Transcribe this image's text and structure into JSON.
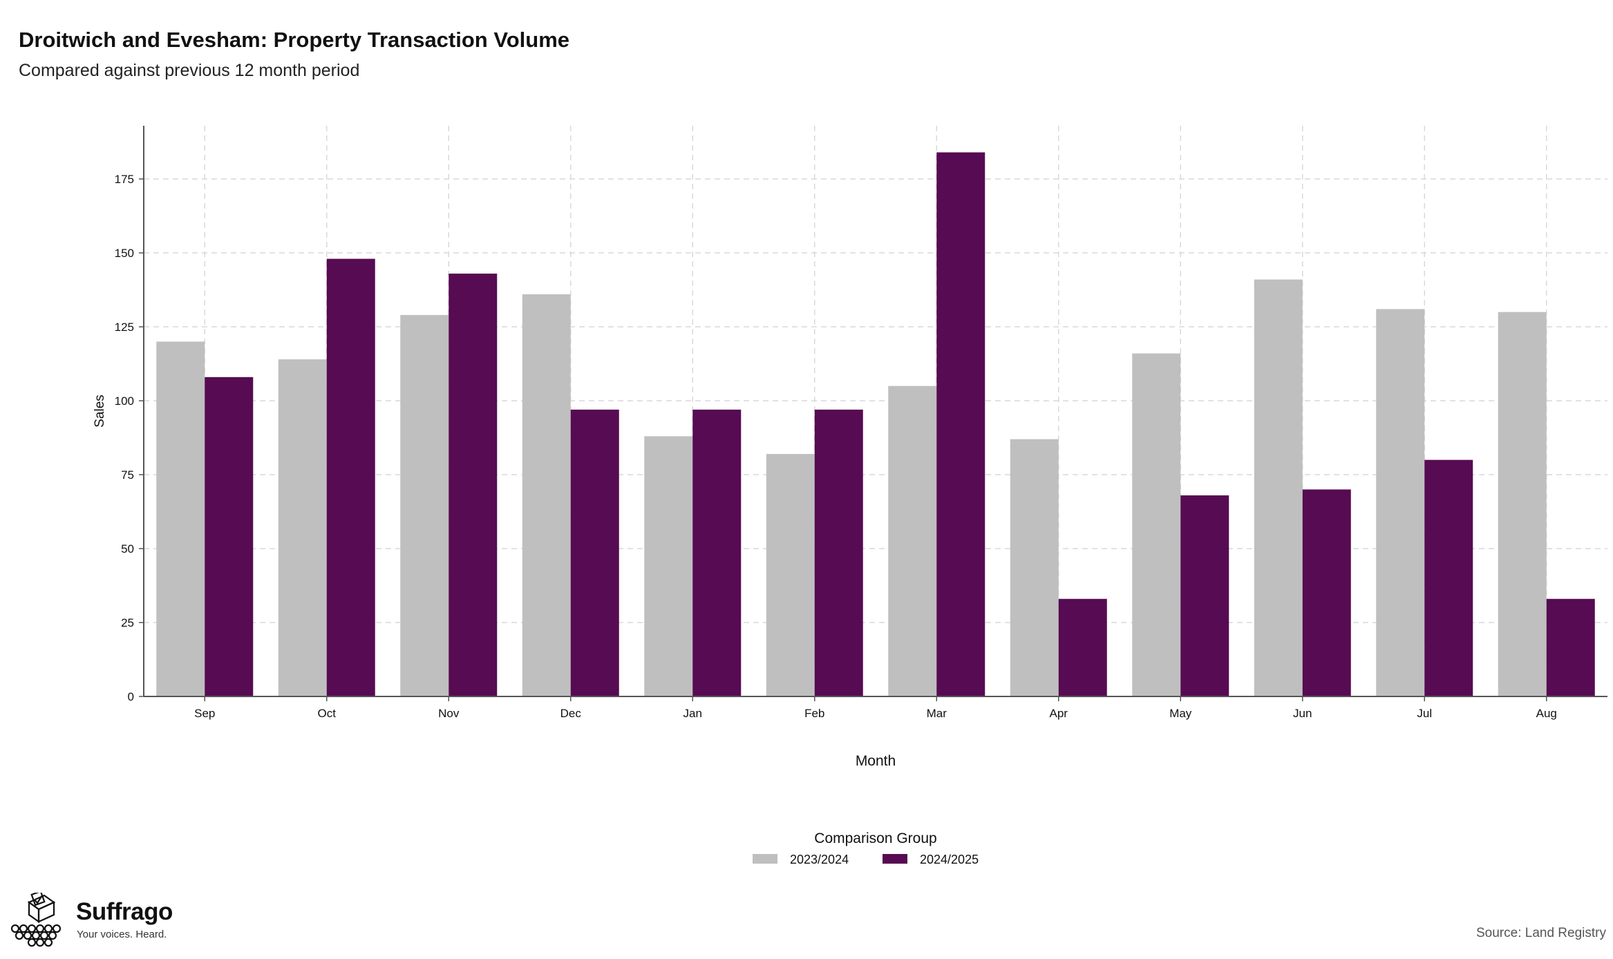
{
  "header": {
    "title": "Droitwich and Evesham: Property Transaction Volume",
    "subtitle": "Compared against previous 12 month period"
  },
  "footer": {
    "brand_name": "Suffrago",
    "brand_tagline": "Your voices. Heard.",
    "source": "Source: Land Registry"
  },
  "colors": {
    "2023/2024": "#bfbfbf",
    "2024/2025": "#560b52",
    "grid": "#d9d9d9",
    "axis": "#555555"
  },
  "chart_data": {
    "type": "bar",
    "title": "Droitwich and Evesham: Property Transaction Volume",
    "subtitle": "Compared against previous 12 month period",
    "xlabel": "Month",
    "ylabel": "Sales",
    "categories": [
      "Sep",
      "Oct",
      "Nov",
      "Dec",
      "Jan",
      "Feb",
      "Mar",
      "Apr",
      "May",
      "Jun",
      "Jul",
      "Aug"
    ],
    "series": [
      {
        "name": "2023/2024",
        "values": [
          120,
          114,
          129,
          136,
          88,
          82,
          105,
          87,
          116,
          141,
          131,
          130
        ]
      },
      {
        "name": "2024/2025",
        "values": [
          108,
          148,
          143,
          97,
          97,
          97,
          184,
          33,
          68,
          70,
          80,
          33
        ]
      }
    ],
    "yticks": [
      0,
      25,
      50,
      75,
      100,
      125,
      150,
      175
    ],
    "ylim": [
      0,
      193
    ],
    "grid": true,
    "legend_title": "Comparison Group",
    "legend_position": "bottom-center"
  }
}
